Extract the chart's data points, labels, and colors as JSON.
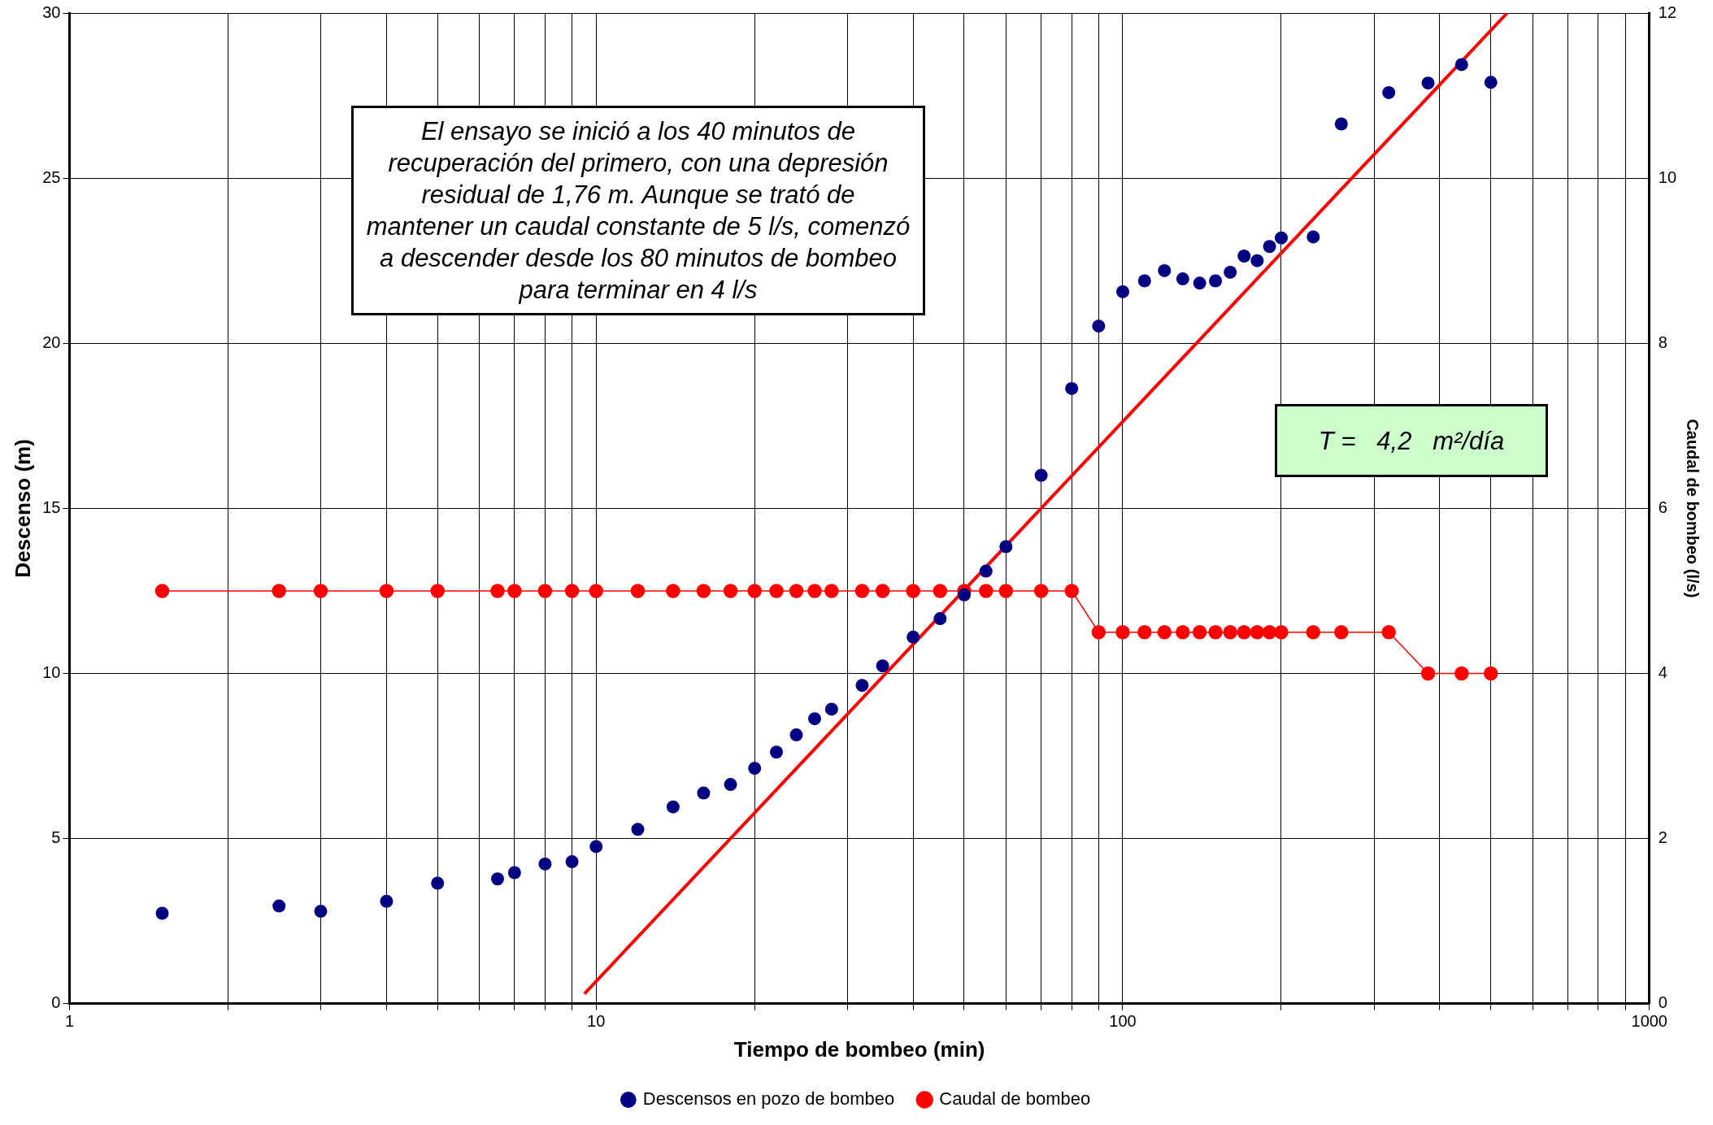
{
  "chart_data": {
    "type": "scatter",
    "xlabel": "Tiempo de bombeo (min)",
    "ylabel": "Descenso (m)",
    "y2label": "Caudal de bombeo (l/s)",
    "log": "x",
    "xlim": [
      1,
      1000
    ],
    "xticks": [
      1,
      {
        "value": 2,
        "label": null
      },
      {
        "value": 3,
        "label": null
      },
      {
        "value": 4,
        "label": null
      },
      {
        "value": 5,
        "label": null
      },
      {
        "value": 6,
        "label": null
      },
      {
        "value": 7,
        "label": null
      },
      {
        "value": 8,
        "label": null
      },
      {
        "value": 9,
        "label": null
      },
      10,
      {
        "value": 20,
        "label": null
      },
      {
        "value": 30,
        "label": null
      },
      {
        "value": 40,
        "label": null
      },
      {
        "value": 50,
        "label": null
      },
      {
        "value": 60,
        "label": null
      },
      {
        "value": 70,
        "label": null
      },
      {
        "value": 80,
        "label": null
      },
      {
        "value": 90,
        "label": null
      },
      100,
      {
        "value": 200,
        "label": null
      },
      {
        "value": 300,
        "label": null
      },
      {
        "value": 400,
        "label": null
      },
      {
        "value": 500,
        "label": null
      },
      {
        "value": 600,
        "label": null
      },
      {
        "value": 700,
        "label": null
      },
      {
        "value": 800,
        "label": null
      },
      {
        "value": 900,
        "label": null
      },
      1000
    ],
    "ylim": [
      0,
      30
    ],
    "yticks": [
      0,
      5,
      10,
      15,
      20,
      25,
      30
    ],
    "y2lim": [
      0,
      12
    ],
    "y2ticks": [
      0,
      2,
      4,
      6,
      8,
      10,
      12
    ],
    "grid": true,
    "legend": "bottom",
    "marker": "circle",
    "series": [
      {
        "name": "Descensos en pozo de bombeo",
        "type": "scatter",
        "color": "#000080",
        "x": [
          1.5,
          2.5,
          3,
          4,
          5,
          6.5,
          7,
          8,
          9,
          10,
          12,
          14,
          16,
          18,
          20,
          22,
          24,
          26,
          28,
          32,
          35,
          40,
          45,
          50,
          55,
          60,
          70,
          80,
          90,
          100,
          110,
          120,
          130,
          140,
          150,
          160,
          170,
          180,
          190,
          200,
          230,
          260,
          320,
          380,
          440,
          500
        ],
        "values": [
          2.74,
          2.96,
          2.8,
          3.1,
          3.65,
          3.78,
          3.97,
          4.23,
          4.3,
          4.76,
          5.28,
          5.96,
          6.38,
          6.64,
          7.13,
          7.62,
          8.14,
          8.63,
          8.92,
          9.64,
          10.23,
          11.1,
          11.66,
          12.38,
          13.1,
          13.84,
          16.0,
          18.63,
          20.52,
          21.56,
          21.89,
          22.2,
          21.95,
          21.82,
          21.89,
          22.15,
          22.64,
          22.5,
          22.93,
          23.19,
          23.22,
          26.64,
          27.59,
          27.88,
          28.44,
          27.9
        ]
      },
      {
        "name": "Caudal de bombeo",
        "type": "line",
        "axis": "y2",
        "color": "#ff0000",
        "x": [
          1.5,
          2.5,
          3,
          4,
          5,
          6.5,
          7,
          8,
          9,
          10,
          12,
          14,
          16,
          18,
          20,
          22,
          24,
          26,
          28,
          32,
          35,
          40,
          45,
          50,
          55,
          60,
          70,
          80,
          90,
          100,
          110,
          120,
          130,
          140,
          150,
          160,
          170,
          180,
          190,
          200,
          230,
          260,
          320,
          380,
          440,
          500
        ],
        "values": [
          5,
          5,
          5,
          5,
          5,
          5,
          5,
          5,
          5,
          5,
          5,
          5,
          5,
          5,
          5,
          5,
          5,
          5,
          5,
          5,
          5,
          5,
          5,
          5,
          5,
          5,
          5,
          5,
          4.5,
          4.5,
          4.5,
          4.5,
          4.5,
          4.5,
          4.5,
          4.5,
          4.5,
          4.5,
          4.5,
          4.5,
          4.5,
          4.5,
          4.5,
          4,
          4,
          4
        ]
      },
      {
        "type": "line",
        "color": "#ff0000",
        "marker": "none",
        "x": [
          9.5,
          537
        ],
        "values": [
          0.3,
          30
        ]
      }
    ],
    "annotations": [
      "El ensayo se inició a los 40 minutos de recuperación del primero, con una depresión residual de 1,76 m. Aunque se trató de mantener un caudal constante de 5 l/s, comenzó a descender desde los 80 minutos de bombeo para terminar en 4 l/s",
      "T =   4,2   m²/día"
    ]
  }
}
